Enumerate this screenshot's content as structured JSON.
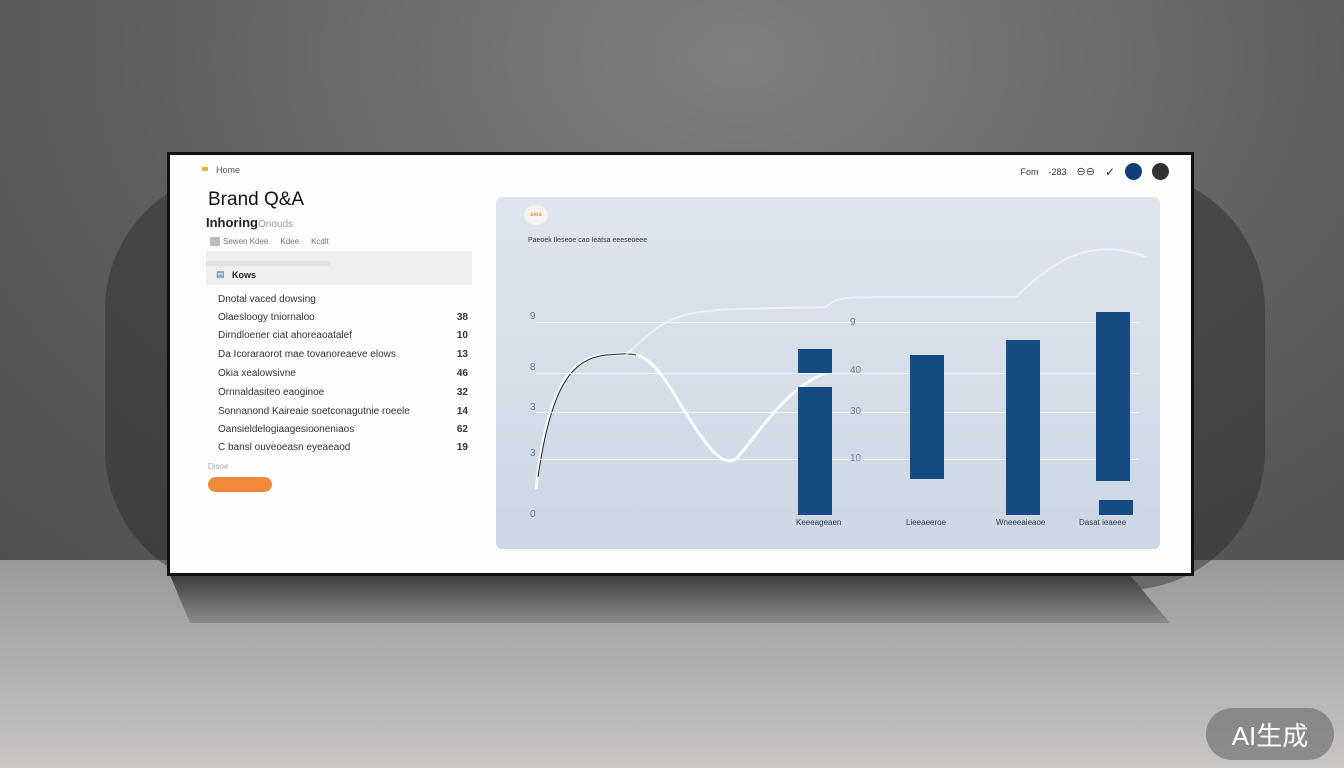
{
  "header": {
    "crumb": "Home",
    "right_text": "Fom",
    "right_num": "-283"
  },
  "sidebar": {
    "title": "Brand Q&A",
    "subtitle": "Inhoring",
    "subtitle_hint": "Onouds",
    "tabs": [
      "Sewen Kdee",
      "Kdee",
      "Kcdlt"
    ],
    "section": "Kows",
    "items": [
      {
        "label": "Dnotal vaced dowsing",
        "value": ""
      },
      {
        "label": "Olaesloogy tniornaloo",
        "value": "38"
      },
      {
        "label": "Dirndloener ciat ahoreaoatalef",
        "value": "10"
      },
      {
        "label": "Da Icoraraorot mae tovanoreaeve elows",
        "value": "13"
      },
      {
        "label": "Okia xealowsivne",
        "value": "46"
      },
      {
        "label": "Ornnaldasiteo eaoginoe",
        "value": "32"
      },
      {
        "label": "Sonnanond Kaireaie soetconagutnie roeele",
        "value": "14"
      },
      {
        "label": "Oansieldelogiaagesiooneniaos",
        "value": "62"
      },
      {
        "label": "C bansl ouveoeasn eyeaeaod",
        "value": "19"
      }
    ],
    "footer": "Disoe",
    "button_color": "#f0893a"
  },
  "chart_data": {
    "type": "bar",
    "title": "Paeoek  Ileseoe cao  Ieatsa eeeseoeee",
    "badge": "aiea",
    "left_ticks": [
      "9",
      "8",
      "3",
      "3",
      "0"
    ],
    "right_ticks": [
      "9",
      "40",
      "30",
      "10"
    ],
    "categories": [
      "Keeeageaen",
      "Lieeaeeroe",
      "Wneeeaieaoe",
      "Dasat ieaeee"
    ],
    "bar_color": "#164a83",
    "grid": true
  },
  "watermark": "AI生成"
}
